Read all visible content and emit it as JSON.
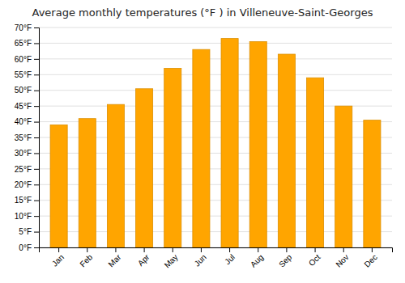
{
  "chart_data": {
    "type": "bar",
    "title": "Average monthly temperatures (°F ) in Villeneuve-Saint-Georges",
    "categories": [
      "Jan",
      "Feb",
      "Mar",
      "Apr",
      "May",
      "Jun",
      "Jul",
      "Aug",
      "Sep",
      "Oct",
      "Nov",
      "Dec"
    ],
    "values": [
      39,
      41,
      45.5,
      50.5,
      57,
      63,
      66.5,
      65.5,
      61.5,
      54,
      45,
      40.5
    ],
    "color": "#FFA500",
    "ylim": [
      0,
      70
    ],
    "yticks": [
      {
        "value": 0,
        "label": "0°F"
      },
      {
        "value": 5,
        "label": "5°F"
      },
      {
        "value": 10,
        "label": "10°F"
      },
      {
        "value": 15,
        "label": "15°F"
      },
      {
        "value": 20,
        "label": "20°F"
      },
      {
        "value": 25,
        "label": "25°F"
      },
      {
        "value": 30,
        "label": "30°F"
      },
      {
        "value": 35,
        "label": "35°F"
      },
      {
        "value": 40,
        "label": "40°F"
      },
      {
        "value": 45,
        "label": "45°F"
      },
      {
        "value": 50,
        "label": "50°F"
      },
      {
        "value": 55,
        "label": "55°F"
      },
      {
        "value": 60,
        "label": "60°F"
      },
      {
        "value": 65,
        "label": "65°F"
      },
      {
        "value": 70,
        "label": "70°F"
      }
    ],
    "grid": true
  }
}
